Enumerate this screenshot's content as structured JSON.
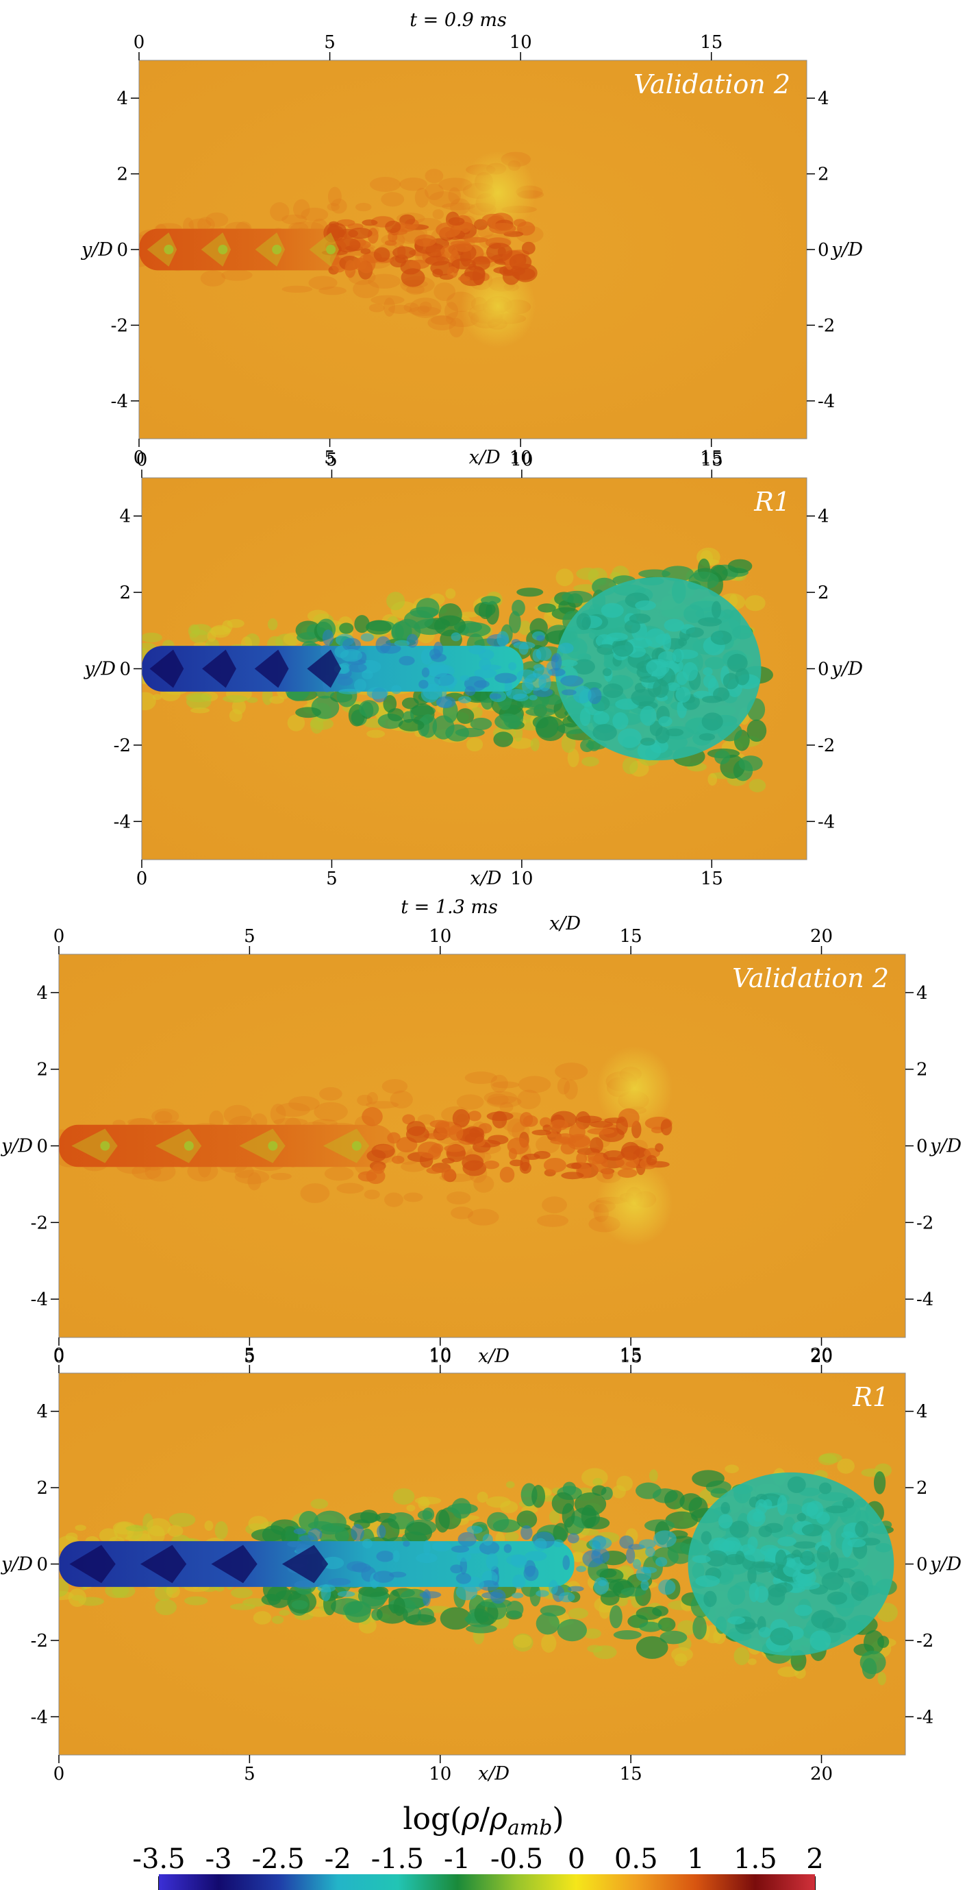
{
  "figure": {
    "x_axis_label": "x/D",
    "y_axis_label": "y/D",
    "colorbar_label": "log(ρ/ρ_amb)",
    "colorbar_label_main": "log(",
    "colorbar_label_rho": "ρ",
    "colorbar_label_sep": "/",
    "colorbar_label_sub": "amb",
    "colorbar_label_close": ")",
    "colorbar_ticks": [
      "-3.5",
      "-3",
      "-2.5",
      "-2",
      "-1.5",
      "-1",
      "-0.5",
      "0",
      "0.5",
      "1",
      "1.5",
      "2"
    ],
    "colorbar_stops": [
      "#3b2fd6",
      "#120a6e",
      "#1f3ba8",
      "#23b4c8",
      "#22c4b4",
      "#1a8a3a",
      "#97c42c",
      "#f5e61a",
      "#f0a020",
      "#d85510",
      "#7a0c0c",
      "#d0303a"
    ]
  },
  "chart_data": [
    {
      "type": "heatmap",
      "time_label": "t = 0.9 ms",
      "title": "Validation 2",
      "xlim": [
        0,
        17.5
      ],
      "ylim": [
        -5,
        5
      ],
      "x_ticks": [
        "0",
        "5",
        "10",
        "15"
      ],
      "y_ticks": [
        "4",
        "2",
        "0",
        "-2",
        "-4"
      ],
      "field": "log(ρ/ρamb)",
      "background_value": 0.3,
      "jet_tip_x": 10.3
    },
    {
      "type": "heatmap",
      "title": "R1",
      "xlim": [
        0,
        17.5
      ],
      "ylim": [
        -5,
        5
      ],
      "x_ticks": [
        "0",
        "5",
        "10",
        "15"
      ],
      "y_ticks": [
        "4",
        "2",
        "0",
        "-2",
        "-4"
      ],
      "field": "log(ρ/ρamb)",
      "background_value": 0.3,
      "jet_tip_x": 16.2
    },
    {
      "type": "heatmap",
      "time_label": "t = 1.3 ms",
      "title": "Validation 2",
      "xlim": [
        0,
        22.2
      ],
      "ylim": [
        -5,
        5
      ],
      "x_ticks": [
        "0",
        "5",
        "10",
        "15",
        "20"
      ],
      "y_ticks": [
        "4",
        "2",
        "0",
        "-2",
        "-4"
      ],
      "field": "log(ρ/ρamb)",
      "background_value": 0.3,
      "jet_tip_x": 16.0
    },
    {
      "type": "heatmap",
      "title": "R1",
      "xlim": [
        0,
        22.2
      ],
      "ylim": [
        -5,
        5
      ],
      "x_ticks": [
        "0",
        "5",
        "10",
        "15",
        "20"
      ],
      "y_ticks": [
        "4",
        "2",
        "0",
        "-2",
        "-4"
      ],
      "field": "log(ρ/ρamb)",
      "background_value": 0.3,
      "jet_tip_x": 21.8
    }
  ]
}
